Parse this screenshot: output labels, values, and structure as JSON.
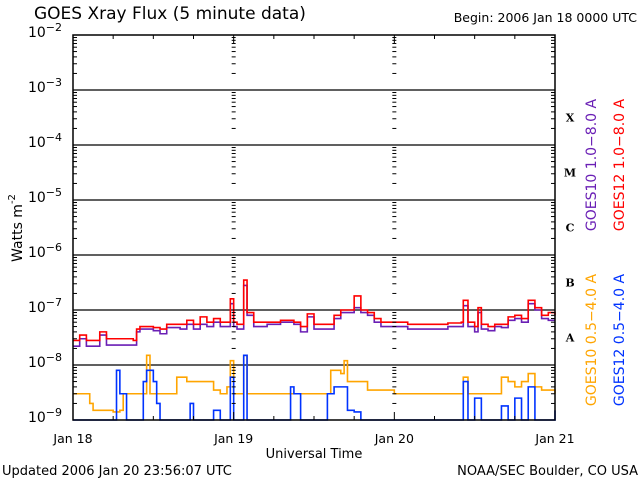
{
  "chart_data": {
    "type": "line",
    "title": "GOES Xray Flux (5 minute data)",
    "begin": "Begin:  2006 Jan 18 0000 UTC",
    "xlabel": "Universal Time",
    "ylabel": "Watts m",
    "ylabel_sup": "-2",
    "y_scale": "log",
    "ylim": [
      1e-09,
      0.01
    ],
    "xlim_hours": [
      0,
      72
    ],
    "y_ticks": [
      {
        "base": "10",
        "exp": "-2",
        "value": -2
      },
      {
        "base": "10",
        "exp": "-3",
        "value": -3
      },
      {
        "base": "10",
        "exp": "-4",
        "value": -4
      },
      {
        "base": "10",
        "exp": "-5",
        "value": -5
      },
      {
        "base": "10",
        "exp": "-6",
        "value": -6
      },
      {
        "base": "10",
        "exp": "-7",
        "value": -7
      },
      {
        "base": "10",
        "exp": "-8",
        "value": -8
      },
      {
        "base": "10",
        "exp": "-9",
        "value": -9
      }
    ],
    "x_ticks": [
      {
        "label": "Jan 18",
        "hour": 0
      },
      {
        "label": "Jan 19",
        "hour": 24
      },
      {
        "label": "Jan 20",
        "hour": 48
      },
      {
        "label": "Jan 21",
        "hour": 72
      }
    ],
    "flare_classes": [
      {
        "label": "X",
        "value": -3.5
      },
      {
        "label": "M",
        "value": -4.5
      },
      {
        "label": "C",
        "value": -5.5
      },
      {
        "label": "B",
        "value": -6.5
      },
      {
        "label": "A",
        "value": -7.5
      }
    ],
    "grid_lines_at": [
      -3,
      -4,
      -5,
      -6,
      -7,
      -8
    ],
    "series": [
      {
        "name": "GOES10 1.0-8.0 A",
        "color": "#6a1fb5",
        "points": [
          [
            0,
            2.2e-08
          ],
          [
            1,
            3e-08
          ],
          [
            2,
            2.2e-08
          ],
          [
            4,
            3.5e-08
          ],
          [
            5,
            2.3e-08
          ],
          [
            9,
            2.3e-08
          ],
          [
            9.5,
            4e-08
          ],
          [
            10,
            4.5e-08
          ],
          [
            12,
            4.2e-08
          ],
          [
            13,
            3.7e-08
          ],
          [
            14,
            4.8e-08
          ],
          [
            16,
            4.5e-08
          ],
          [
            17,
            5.5e-08
          ],
          [
            18,
            4.5e-08
          ],
          [
            19,
            5.5e-08
          ],
          [
            20,
            5e-08
          ],
          [
            21,
            6e-08
          ],
          [
            22,
            5e-08
          ],
          [
            23,
            5e-08
          ],
          [
            23.5,
            1.3e-07
          ],
          [
            24,
            5e-08
          ],
          [
            24.5,
            4.5e-08
          ],
          [
            25.5,
            2.8e-07
          ],
          [
            26,
            8e-08
          ],
          [
            27,
            5e-08
          ],
          [
            29,
            5.5e-08
          ],
          [
            31,
            6e-08
          ],
          [
            33,
            5.5e-08
          ],
          [
            34,
            4e-08
          ],
          [
            35,
            7.5e-08
          ],
          [
            36,
            4.5e-08
          ],
          [
            38,
            4.5e-08
          ],
          [
            39,
            7e-08
          ],
          [
            40,
            9e-08
          ],
          [
            42,
            1.1e-07
          ],
          [
            43,
            9e-08
          ],
          [
            44,
            8e-08
          ],
          [
            45,
            6e-08
          ],
          [
            46,
            5e-08
          ],
          [
            48,
            5e-08
          ],
          [
            50,
            4.5e-08
          ],
          [
            52,
            4.5e-08
          ],
          [
            54,
            4.5e-08
          ],
          [
            56,
            5e-08
          ],
          [
            58,
            5e-08
          ],
          [
            58.3,
            1.2e-07
          ],
          [
            59,
            5e-08
          ],
          [
            60,
            4e-08
          ],
          [
            60.5,
            9e-08
          ],
          [
            61,
            4.5e-08
          ],
          [
            62,
            4.2e-08
          ],
          [
            63,
            5e-08
          ],
          [
            64,
            4.8e-08
          ],
          [
            65,
            6.5e-08
          ],
          [
            66,
            7e-08
          ],
          [
            67,
            6e-08
          ],
          [
            68,
            1.3e-07
          ],
          [
            69,
            1e-07
          ],
          [
            70,
            7e-08
          ],
          [
            71,
            6.5e-08
          ],
          [
            72,
            6.5e-08
          ]
        ]
      },
      {
        "name": "GOES12 1.0-8.0 A",
        "color": "#ff0000",
        "points": [
          [
            0,
            2.8e-08
          ],
          [
            1,
            3.5e-08
          ],
          [
            2,
            2.8e-08
          ],
          [
            4,
            4e-08
          ],
          [
            5,
            3e-08
          ],
          [
            9,
            2.8e-08
          ],
          [
            9.5,
            4.5e-08
          ],
          [
            10,
            5e-08
          ],
          [
            12,
            4.8e-08
          ],
          [
            13,
            4.5e-08
          ],
          [
            14,
            5.5e-08
          ],
          [
            16,
            5.5e-08
          ],
          [
            17,
            6.5e-08
          ],
          [
            18,
            5.5e-08
          ],
          [
            19,
            7.5e-08
          ],
          [
            20,
            6e-08
          ],
          [
            21,
            7e-08
          ],
          [
            22,
            6e-08
          ],
          [
            23,
            6e-08
          ],
          [
            23.5,
            1.6e-07
          ],
          [
            24,
            6e-08
          ],
          [
            24.5,
            5.5e-08
          ],
          [
            25.5,
            3.5e-07
          ],
          [
            26,
            9e-08
          ],
          [
            27,
            6e-08
          ],
          [
            29,
            6e-08
          ],
          [
            31,
            6.5e-08
          ],
          [
            33,
            6e-08
          ],
          [
            34,
            5e-08
          ],
          [
            35,
            8.5e-08
          ],
          [
            36,
            5.5e-08
          ],
          [
            38,
            5.5e-08
          ],
          [
            39,
            8e-08
          ],
          [
            40,
            1e-07
          ],
          [
            42,
            1.8e-07
          ],
          [
            43,
            1e-07
          ],
          [
            44,
            9e-08
          ],
          [
            45,
            7e-08
          ],
          [
            46,
            6e-08
          ],
          [
            48,
            6e-08
          ],
          [
            50,
            5.5e-08
          ],
          [
            52,
            5.5e-08
          ],
          [
            54,
            5.5e-08
          ],
          [
            56,
            5.8e-08
          ],
          [
            58,
            6e-08
          ],
          [
            58.3,
            1.5e-07
          ],
          [
            59,
            6e-08
          ],
          [
            60,
            5e-08
          ],
          [
            60.5,
            1.1e-07
          ],
          [
            61,
            5.5e-08
          ],
          [
            62,
            5e-08
          ],
          [
            63,
            5.5e-08
          ],
          [
            64,
            5.5e-08
          ],
          [
            65,
            7.5e-08
          ],
          [
            66,
            8e-08
          ],
          [
            67,
            7e-08
          ],
          [
            68,
            1.5e-07
          ],
          [
            69,
            1.1e-07
          ],
          [
            70,
            8e-08
          ],
          [
            71,
            9e-08
          ],
          [
            72,
            8e-08
          ]
        ]
      },
      {
        "name": "GOES10 0.5-4.0 A",
        "color": "#ffa500",
        "points": [
          [
            0,
            3e-09
          ],
          [
            2,
            3e-09
          ],
          [
            2.5,
            2e-09
          ],
          [
            3,
            1.5e-09
          ],
          [
            6,
            1.4e-09
          ],
          [
            7,
            1.5e-09
          ],
          [
            7.5,
            3e-09
          ],
          [
            10,
            3e-09
          ],
          [
            11,
            1.5e-08
          ],
          [
            11.5,
            3e-09
          ],
          [
            13,
            3e-09
          ],
          [
            15,
            3e-09
          ],
          [
            15.5,
            6e-09
          ],
          [
            16,
            6e-09
          ],
          [
            17,
            5e-09
          ],
          [
            20,
            5e-09
          ],
          [
            21,
            3.5e-09
          ],
          [
            22,
            3e-09
          ],
          [
            23,
            4e-09
          ],
          [
            23.5,
            1.2e-08
          ],
          [
            24,
            3e-09
          ],
          [
            25,
            3e-09
          ],
          [
            25.5,
            1.5e-08
          ],
          [
            26,
            3e-09
          ],
          [
            30,
            3e-09
          ],
          [
            33,
            3e-09
          ],
          [
            37,
            3e-09
          ],
          [
            38.5,
            8e-09
          ],
          [
            40,
            7e-09
          ],
          [
            40.5,
            1.2e-08
          ],
          [
            41,
            5e-09
          ],
          [
            43,
            5e-09
          ],
          [
            44,
            3.5e-09
          ],
          [
            46,
            3.5e-09
          ],
          [
            48,
            3e-09
          ],
          [
            52,
            3e-09
          ],
          [
            56,
            3e-09
          ],
          [
            58,
            3e-09
          ],
          [
            58.3,
            6e-09
          ],
          [
            59,
            3e-09
          ],
          [
            63,
            3e-09
          ],
          [
            64,
            6e-09
          ],
          [
            65,
            5e-09
          ],
          [
            66,
            4e-09
          ],
          [
            67,
            5e-09
          ],
          [
            68,
            7e-09
          ],
          [
            69,
            4e-09
          ],
          [
            70,
            3.5e-09
          ],
          [
            72,
            3e-09
          ]
        ]
      },
      {
        "name": "GOES12 0.5-4.0 A",
        "color": "#0033ff",
        "points": [
          [
            0,
            1e-09
          ],
          [
            6,
            1e-09
          ],
          [
            6.5,
            8e-09
          ],
          [
            7,
            3e-09
          ],
          [
            8,
            1e-09
          ],
          [
            10,
            1e-09
          ],
          [
            10.5,
            5e-09
          ],
          [
            11,
            8e-09
          ],
          [
            12,
            5e-09
          ],
          [
            12.5,
            2e-09
          ],
          [
            13,
            1e-09
          ],
          [
            17,
            1e-09
          ],
          [
            17.5,
            2e-09
          ],
          [
            18,
            1e-09
          ],
          [
            20,
            1e-09
          ],
          [
            21,
            1.5e-09
          ],
          [
            22,
            1e-09
          ],
          [
            23,
            1e-09
          ],
          [
            23.5,
            6e-09
          ],
          [
            24,
            1e-09
          ],
          [
            25,
            1e-09
          ],
          [
            25.5,
            1.5e-08
          ],
          [
            26,
            1e-09
          ],
          [
            32,
            1e-09
          ],
          [
            32.5,
            4e-09
          ],
          [
            33,
            3e-09
          ],
          [
            34,
            1e-09
          ],
          [
            37,
            1e-09
          ],
          [
            38,
            3e-09
          ],
          [
            39,
            4e-09
          ],
          [
            40,
            4e-09
          ],
          [
            41,
            1.5e-09
          ],
          [
            42,
            1.4e-09
          ],
          [
            43,
            1e-09
          ],
          [
            48,
            1e-09
          ],
          [
            58,
            1e-09
          ],
          [
            58.3,
            5e-09
          ],
          [
            59,
            1e-09
          ],
          [
            60,
            2.5e-09
          ],
          [
            61,
            1e-09
          ],
          [
            64,
            1.8e-09
          ],
          [
            65,
            1e-09
          ],
          [
            66,
            2.5e-09
          ],
          [
            67,
            1e-09
          ],
          [
            68,
            4e-09
          ],
          [
            69,
            1e-09
          ],
          [
            72,
            1.5e-09
          ]
        ]
      }
    ]
  },
  "footer": {
    "updated": "Updated 2006 Jan 20 23:56:07 UTC",
    "source": "NOAA/SEC Boulder, CO USA"
  }
}
